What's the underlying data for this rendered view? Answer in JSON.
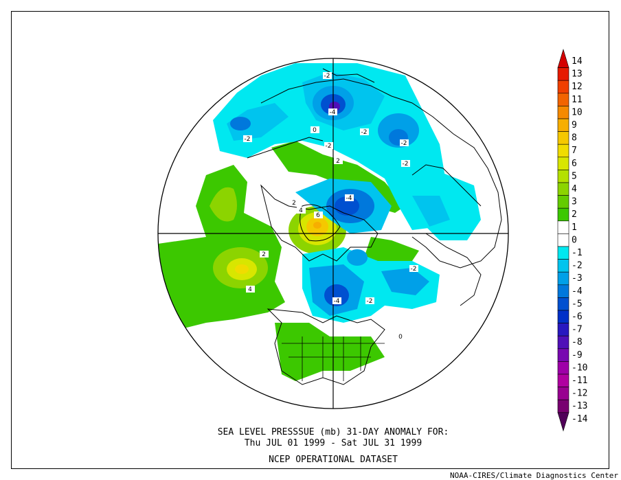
{
  "title_line1": "SEA LEVEL PRESSSUE (mb)   31-DAY ANOMALY FOR:",
  "title_line2": "Thu JUL 01 1999 - Sat JUL 31 1999",
  "title_line3": "NCEP OPERATIONAL DATASET",
  "credit": "NOAA-CIRES/Climate Diagnostics Center",
  "colorbar": {
    "levels": [
      "14",
      "13",
      "12",
      "11",
      "10",
      "9",
      "8",
      "7",
      "6",
      "5",
      "4",
      "3",
      "2",
      "1",
      "0",
      "-1",
      "-2",
      "-3",
      "-4",
      "-5",
      "-6",
      "-7",
      "-8",
      "-9",
      "-10",
      "-11",
      "-12",
      "-13",
      "-14"
    ],
    "colors": [
      "#d40000",
      "#e61a00",
      "#f04000",
      "#f26400",
      "#f58a00",
      "#f7ae00",
      "#f5c800",
      "#f0dc00",
      "#d8e600",
      "#b4e000",
      "#8cd400",
      "#64cc00",
      "#3cc800",
      "#ffffff",
      "#ffffff",
      "#00e8f0",
      "#00c4ee",
      "#00a0e8",
      "#0078dc",
      "#0050d0",
      "#0030c8",
      "#2818c0",
      "#5010b8",
      "#7808b0",
      "#9e00a8",
      "#b000a0",
      "#980090",
      "#780070",
      "#500058"
    ]
  },
  "contour_labels": [
    "-2",
    "-4",
    "-2",
    "-2",
    "-2",
    "2",
    "2",
    "-2",
    "-4",
    "6",
    "4",
    "2",
    "4",
    "-2",
    "-4",
    "-2",
    "-2",
    "0",
    "0"
  ]
}
